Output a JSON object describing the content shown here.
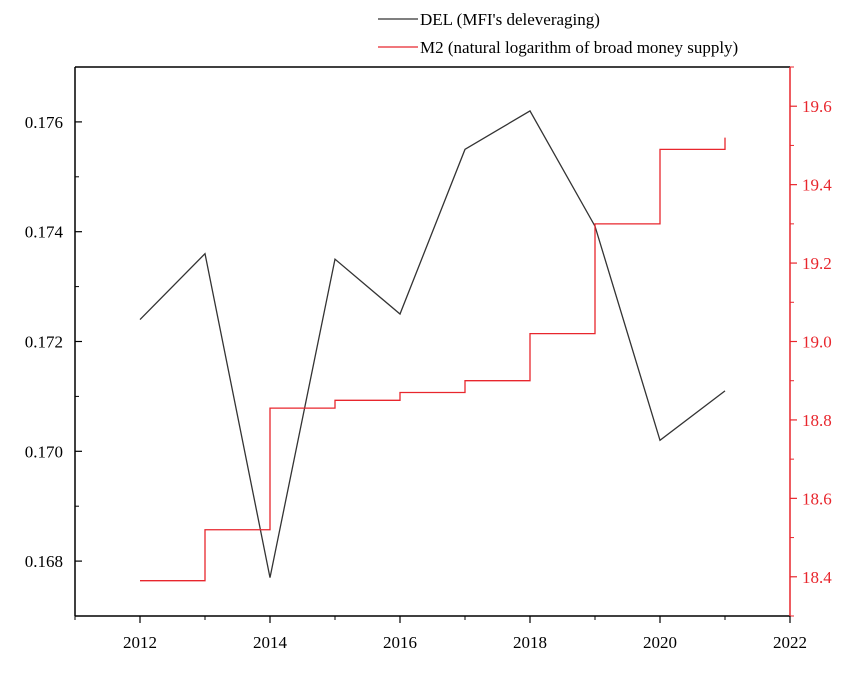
{
  "chart_data": {
    "type": "line",
    "title": "",
    "xlabel": "",
    "ylabel": "",
    "y2label": "",
    "xlim": [
      2011,
      2022
    ],
    "ylim": [
      0.167,
      0.177
    ],
    "y2lim": [
      18.3,
      19.7
    ],
    "x_ticks": [
      2012,
      2014,
      2016,
      2018,
      2020,
      2022
    ],
    "y_ticks": [
      "0.168",
      "0.170",
      "0.172",
      "0.174",
      "0.176"
    ],
    "y2_ticks": [
      "18.4",
      "18.6",
      "18.8",
      "19.0",
      "19.2",
      "19.4",
      "19.6"
    ],
    "grid": false,
    "legend_position": "top-right",
    "series": [
      {
        "name": "DEL (MFI's deleveraging)",
        "axis": "left",
        "color": "#333333",
        "style": "line",
        "x": [
          2012,
          2013,
          2014,
          2015,
          2016,
          2017,
          2018,
          2019,
          2020,
          2021
        ],
        "values": [
          0.1724,
          0.1736,
          0.1677,
          0.1735,
          0.1725,
          0.1755,
          0.1762,
          0.1741,
          0.1702,
          0.1711
        ]
      },
      {
        "name": "M2 (natural logarithm of broad money supply)",
        "axis": "right",
        "color": "#e8262d",
        "style": "step-post",
        "x": [
          2012,
          2013,
          2014,
          2015,
          2016,
          2017,
          2018,
          2019,
          2020,
          2021
        ],
        "values": [
          18.39,
          18.52,
          18.83,
          18.85,
          18.87,
          18.9,
          19.02,
          19.3,
          19.49,
          19.52
        ]
      }
    ]
  }
}
